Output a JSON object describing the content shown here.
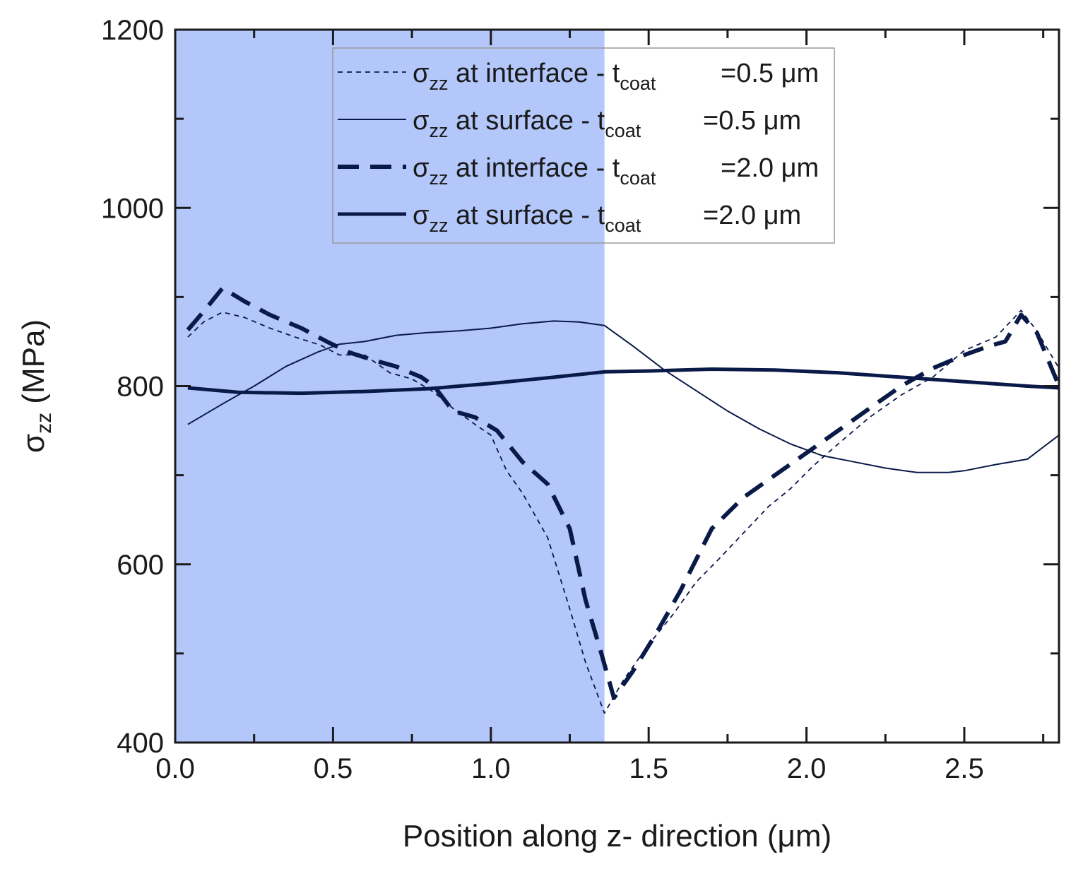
{
  "chart_data": {
    "type": "line",
    "xlabel": "Position along z- direction (μm)",
    "ylabel": {
      "symbol": "σ",
      "subscript": "zz",
      "unit": "(MPa)"
    },
    "xlim": [
      0.0,
      2.8
    ],
    "ylim": [
      400,
      1200
    ],
    "x_ticks": [
      "0.0",
      "0.5",
      "1.0",
      "1.5",
      "2.0",
      "2.5"
    ],
    "x_tick_values": [
      0.0,
      0.5,
      1.0,
      1.5,
      2.0,
      2.5
    ],
    "y_ticks": [
      "400",
      "600",
      "800",
      "1000",
      "1200"
    ],
    "y_tick_values": [
      400,
      600,
      800,
      1000,
      1200
    ],
    "shaded_region": {
      "x_start": 0.0,
      "x_end": 1.36,
      "color": "#b3c7fb"
    },
    "colors": {
      "line": "#0a1a48",
      "axis": "#1a1a1a"
    },
    "legend_position": "top-center",
    "series": [
      {
        "name": "σzz at interface - tcoat =0.5 μm",
        "label": {
          "symbol": "σ",
          "sub1": "zz",
          "text": " at interface - t",
          "sub2": "coat",
          "value": "=0.5 μm"
        },
        "style": "thin-dashed",
        "x": [
          0.04,
          0.09,
          0.15,
          0.22,
          0.3,
          0.38,
          0.46,
          0.52,
          0.6,
          0.68,
          0.75,
          0.82,
          0.88,
          0.95,
          1.0,
          1.05,
          1.1,
          1.18,
          1.25,
          1.3,
          1.36,
          1.42,
          1.5,
          1.58,
          1.65,
          1.72,
          1.8,
          1.88,
          1.95,
          2.02,
          2.1,
          2.2,
          2.3,
          2.4,
          2.5,
          2.6,
          2.68,
          2.73,
          2.8
        ],
        "y": [
          855,
          872,
          883,
          877,
          865,
          855,
          846,
          835,
          835,
          815,
          808,
          793,
          775,
          757,
          745,
          705,
          680,
          630,
          550,
          490,
          433,
          470,
          510,
          545,
          580,
          605,
          635,
          665,
          685,
          710,
          735,
          765,
          790,
          810,
          840,
          855,
          885,
          862,
          820
        ]
      },
      {
        "name": "σzz at surface - tcoat =0.5 μm",
        "label": {
          "symbol": "σ",
          "sub1": "zz",
          "text": " at surface - t",
          "sub2": "coat",
          "value": "=0.5 μm"
        },
        "style": "thin-solid",
        "x": [
          0.04,
          0.15,
          0.25,
          0.35,
          0.45,
          0.52,
          0.6,
          0.7,
          0.8,
          0.9,
          1.0,
          1.1,
          1.2,
          1.28,
          1.36,
          1.45,
          1.55,
          1.65,
          1.75,
          1.85,
          1.95,
          2.05,
          2.15,
          2.25,
          2.35,
          2.45,
          2.5,
          2.6,
          2.7,
          2.8
        ],
        "y": [
          757,
          780,
          800,
          822,
          838,
          847,
          850,
          857,
          860,
          862,
          865,
          870,
          873,
          872,
          868,
          845,
          818,
          795,
          772,
          752,
          735,
          722,
          715,
          708,
          703,
          703,
          705,
          712,
          718,
          745
        ]
      },
      {
        "name": "σzz at interface - tcoat =2.0 μm",
        "label": {
          "symbol": "σ",
          "sub1": "zz",
          "text": " at interface - t",
          "sub2": "coat",
          "value": "=2.0 μm"
        },
        "style": "thick-dashed",
        "x": [
          0.04,
          0.1,
          0.15,
          0.22,
          0.3,
          0.4,
          0.48,
          0.55,
          0.62,
          0.7,
          0.78,
          0.82,
          0.88,
          0.95,
          1.02,
          1.1,
          1.18,
          1.25,
          1.3,
          1.35,
          1.39,
          1.45,
          1.52,
          1.6,
          1.7,
          1.8,
          1.9,
          2.0,
          2.1,
          2.2,
          2.3,
          2.4,
          2.5,
          2.58,
          2.63,
          2.68,
          2.73,
          2.8
        ],
        "y": [
          863,
          888,
          910,
          895,
          880,
          865,
          850,
          838,
          830,
          822,
          810,
          800,
          772,
          765,
          750,
          715,
          690,
          640,
          560,
          500,
          450,
          480,
          520,
          570,
          640,
          675,
          700,
          725,
          750,
          775,
          800,
          820,
          835,
          845,
          850,
          880,
          860,
          800
        ]
      },
      {
        "name": "σzz at surface - tcoat =2.0 μm",
        "label": {
          "symbol": "σ",
          "sub1": "zz",
          "text": " at surface - t",
          "sub2": "coat",
          "value": "=2.0 μm"
        },
        "style": "thick-solid",
        "x": [
          0.04,
          0.2,
          0.4,
          0.6,
          0.8,
          1.0,
          1.2,
          1.36,
          1.5,
          1.7,
          1.9,
          2.1,
          2.3,
          2.5,
          2.7,
          2.8
        ],
        "y": [
          798,
          793,
          792,
          794,
          797,
          803,
          810,
          816,
          817,
          819,
          818,
          815,
          810,
          805,
          800,
          798
        ]
      }
    ]
  }
}
